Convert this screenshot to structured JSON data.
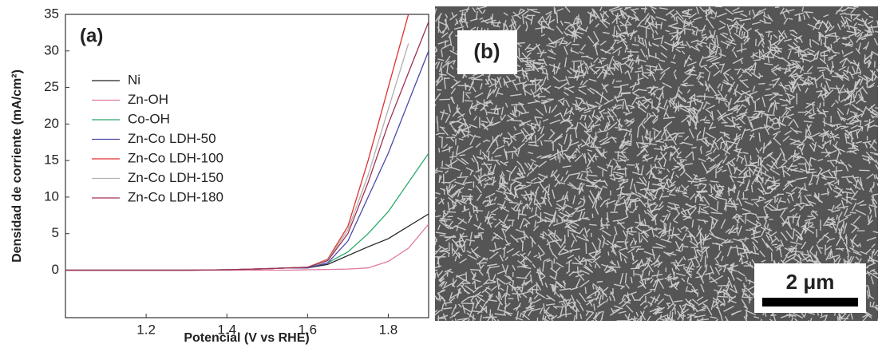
{
  "chart_data": {
    "type": "line",
    "panel_label": "(a)",
    "x_label": "Potencial (V vs RHE)",
    "y_label": "Densidad de corriente (mA/cm²)",
    "xlim": [
      1.0,
      1.9
    ],
    "ylim": [
      -6.5,
      35
    ],
    "xticks": [
      1.2,
      1.4,
      1.6,
      1.8
    ],
    "yticks": [
      0,
      5,
      10,
      15,
      20,
      25,
      30,
      35
    ],
    "legend": "upper left",
    "x": [
      1.0,
      1.1,
      1.2,
      1.3,
      1.4,
      1.5,
      1.55,
      1.6,
      1.65,
      1.7,
      1.75,
      1.8,
      1.85,
      1.9
    ],
    "series": [
      {
        "name": "Ni",
        "color": "#222222",
        "values": [
          0,
          0,
          0,
          0,
          0.05,
          0.2,
          0.3,
          0.3,
          0.8,
          2,
          3.2,
          4.3,
          6,
          7.7
        ]
      },
      {
        "name": "Zn-OH",
        "color": "#e07aa0",
        "values": [
          0,
          0,
          0,
          0,
          0,
          0,
          0,
          0.05,
          0.1,
          0.15,
          0.3,
          1.2,
          3,
          6.3
        ]
      },
      {
        "name": "Co-OH",
        "color": "#2aaa6a",
        "values": [
          0,
          0,
          0,
          0,
          0.05,
          0.2,
          0.3,
          0.3,
          1,
          2.5,
          5,
          8,
          12,
          16
        ]
      },
      {
        "name": "Zn-Co LDH-50",
        "color": "#4a4aaa",
        "values": [
          0,
          0,
          0,
          0,
          0.05,
          0.2,
          0.3,
          0.3,
          1,
          4,
          10,
          16,
          23,
          30
        ]
      },
      {
        "name": "Zn-Co LDH-100",
        "color": "#e03030",
        "values": [
          0,
          0,
          0,
          0,
          0.05,
          0.2,
          0.3,
          0.4,
          1.5,
          6,
          15,
          25,
          35,
          null
        ]
      },
      {
        "name": "Zn-Co LDH-150",
        "color": "#b0b0b0",
        "values": [
          0,
          0,
          0,
          0,
          0.05,
          0.2,
          0.3,
          0.4,
          1.4,
          5.5,
          13,
          22,
          31,
          null
        ]
      },
      {
        "name": "Zn-Co LDH-180",
        "color": "#a03050",
        "values": [
          0,
          0,
          0,
          0,
          0.05,
          0.2,
          0.3,
          0.4,
          1.3,
          5,
          12,
          20,
          27,
          34
        ]
      }
    ]
  },
  "image_panel": {
    "label": "(b)",
    "scale_bar": "2 μm"
  }
}
